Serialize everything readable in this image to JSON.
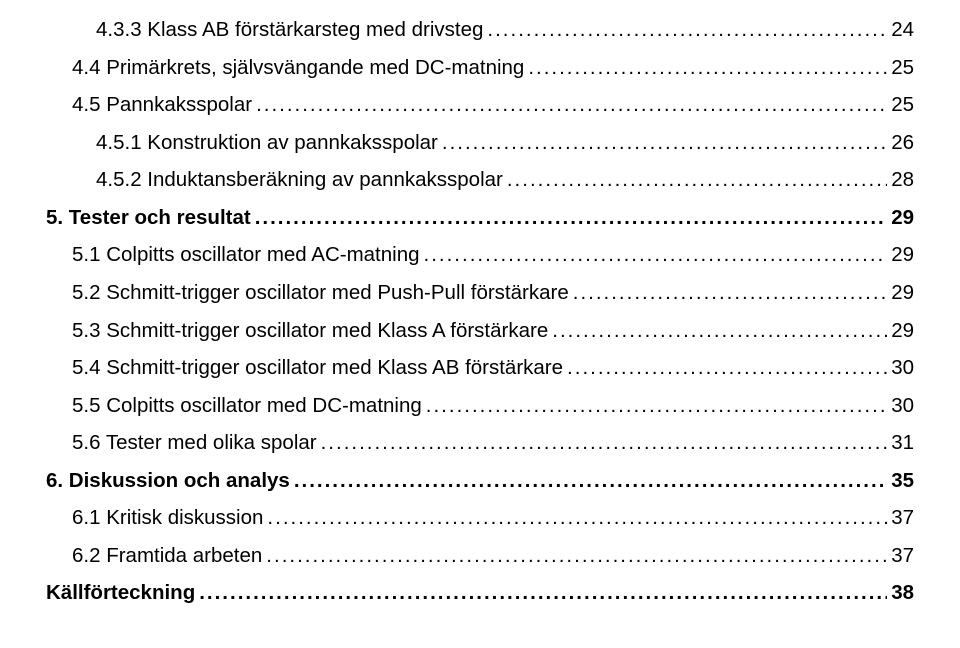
{
  "toc": [
    {
      "label": "4.3.3 Klass AB förstärkarsteg med drivsteg",
      "page": "24",
      "indent": 2,
      "bold": false
    },
    {
      "label": "4.4 Primärkrets, självsvängande med DC-matning",
      "page": "25",
      "indent": 1,
      "bold": false
    },
    {
      "label": "4.5 Pannkaksspolar",
      "page": "25",
      "indent": 1,
      "bold": false
    },
    {
      "label": "4.5.1 Konstruktion av pannkaksspolar",
      "page": "26",
      "indent": 2,
      "bold": false
    },
    {
      "label": "4.5.2 Induktansberäkning av pannkaksspolar",
      "page": "28",
      "indent": 2,
      "bold": false
    },
    {
      "label": "5. Tester och resultat",
      "page": "29",
      "indent": 0,
      "bold": true
    },
    {
      "label": "5.1 Colpitts oscillator med AC-matning",
      "page": "29",
      "indent": 1,
      "bold": false
    },
    {
      "label": "5.2 Schmitt-trigger oscillator med Push-Pull förstärkare",
      "page": "29",
      "indent": 1,
      "bold": false
    },
    {
      "label": "5.3 Schmitt-trigger oscillator med Klass A förstärkare",
      "page": "29",
      "indent": 1,
      "bold": false
    },
    {
      "label": "5.4 Schmitt-trigger oscillator med Klass AB förstärkare",
      "page": "30",
      "indent": 1,
      "bold": false
    },
    {
      "label": "5.5 Colpitts oscillator med DC-matning",
      "page": "30",
      "indent": 1,
      "bold": false
    },
    {
      "label": "5.6 Tester med olika spolar",
      "page": "31",
      "indent": 1,
      "bold": false
    },
    {
      "label": "6. Diskussion och analys",
      "page": "35",
      "indent": 0,
      "bold": true
    },
    {
      "label": "6.1 Kritisk diskussion",
      "page": "37",
      "indent": 1,
      "bold": false
    },
    {
      "label": "6.2 Framtida arbeten",
      "page": "37",
      "indent": 1,
      "bold": false
    },
    {
      "label": "Källförteckning",
      "page": "38",
      "indent": 0,
      "bold": true
    }
  ]
}
